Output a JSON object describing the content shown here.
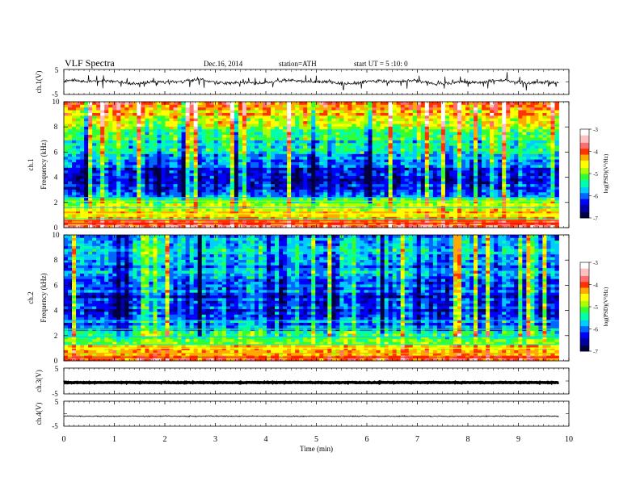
{
  "header": {
    "title": "VLF  Spectra",
    "date": "Dec.16, 2014",
    "station": "station=ATH",
    "start": "start  UT  =   5  :10: 0"
  },
  "chart_data": [
    {
      "type": "line",
      "panel": "ch1-waveform",
      "ylabel": "ch.1(V)",
      "y_ticks": [
        "5",
        "-5"
      ],
      "ylim": [
        -5,
        5
      ],
      "xlim": [
        0,
        10
      ],
      "baseline": 0,
      "trace_color": "#000000"
    },
    {
      "type": "heatmap",
      "panel": "ch1-spectrogram",
      "ylabel": "ch.1\nFrequency  (kHz)",
      "y_ticks": [
        "0",
        "2",
        "4",
        "6",
        "8",
        "10"
      ],
      "ylim": [
        0,
        10
      ],
      "xlim": [
        0,
        9.8
      ],
      "colorbar": {
        "label": "log(PSD)(V²/Hz)",
        "ticks": [
          "-3",
          "-4",
          "-5",
          "-6",
          "-7"
        ],
        "range": [
          -7,
          -3
        ]
      },
      "profile_khz": [
        0,
        1,
        2,
        3,
        4,
        5,
        6,
        7,
        8,
        9,
        10
      ],
      "profile_logpsd": [
        -3.6,
        -4.4,
        -5.0,
        -6.3,
        -6.4,
        -6.2,
        -5.7,
        -5.3,
        -4.9,
        -4.4,
        -4.0
      ]
    },
    {
      "type": "heatmap",
      "panel": "ch2-spectrogram",
      "ylabel": "ch.2\nFrequency  (kHz)",
      "y_ticks": [
        "0",
        "2",
        "4",
        "6",
        "8",
        "10"
      ],
      "ylim": [
        0,
        10
      ],
      "xlim": [
        0,
        9.8
      ],
      "colorbar": {
        "label": "log(PSD)(V²/Hz)",
        "ticks": [
          "-3",
          "-4",
          "-5",
          "-6",
          "-7"
        ],
        "range": [
          -7,
          -3
        ]
      },
      "profile_khz": [
        0,
        1,
        2,
        3,
        4,
        5,
        6,
        7,
        8,
        9,
        10
      ],
      "profile_logpsd": [
        -4.0,
        -4.6,
        -5.3,
        -6.0,
        -6.2,
        -6.2,
        -6.1,
        -5.9,
        -5.8,
        -5.8,
        -5.9
      ]
    },
    {
      "type": "line",
      "panel": "ch3-waveform",
      "ylabel": "ch.3(V)",
      "y_ticks": [
        "5",
        "-5"
      ],
      "ylim": [
        -5,
        5
      ],
      "xlim": [
        0,
        10
      ],
      "baseline": -0.6,
      "trace_color": "#000000"
    },
    {
      "type": "line",
      "panel": "ch4-waveform",
      "ylabel": "ch.4(V)",
      "y_ticks": [
        "5",
        "-5"
      ],
      "ylim": [
        -5,
        5
      ],
      "xlim": [
        0,
        10
      ],
      "baseline": -1.0,
      "trace_color": "#000000"
    }
  ],
  "x_axis": {
    "label": "Time  (min)",
    "ticks": [
      "0",
      "1",
      "2",
      "3",
      "4",
      "5",
      "6",
      "7",
      "8",
      "9",
      "10"
    ],
    "xlim": [
      0,
      10
    ]
  },
  "colormap": [
    "#000040",
    "#0000a0",
    "#0000ff",
    "#0066ff",
    "#00ccff",
    "#00ffaa",
    "#33ff33",
    "#aaff00",
    "#ffff00",
    "#ffaa00",
    "#ff3300",
    "#ff6f6f",
    "#ffc0c0",
    "#ffffff"
  ]
}
